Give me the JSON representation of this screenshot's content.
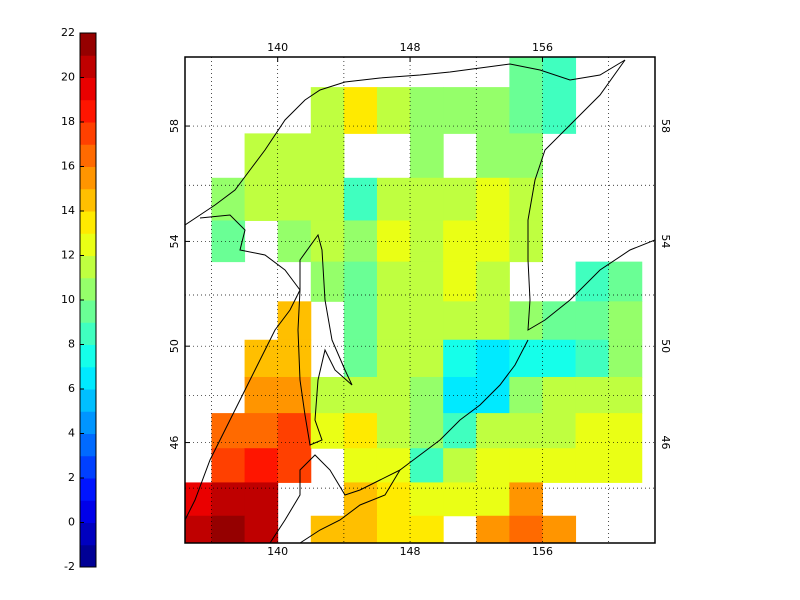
{
  "chart_data": {
    "type": "contourf",
    "colormap": "jet",
    "clim": [
      -2,
      22
    ],
    "contour_interval": 1,
    "colorbar_ticks": [
      -2,
      0,
      2,
      4,
      6,
      8,
      10,
      12,
      14,
      16,
      18,
      20,
      22
    ],
    "xlim": [
      134.4,
      162.8
    ],
    "ylim": [
      41.5,
      60.2
    ],
    "xticks": [
      140,
      148,
      156
    ],
    "yticks": [
      46,
      50,
      54,
      58
    ],
    "xgrid": [
      136,
      140,
      144,
      148,
      152,
      156,
      160
    ],
    "ygrid": [
      44,
      46,
      48,
      50,
      52,
      54,
      56,
      58
    ],
    "grid": true,
    "lon": [
      135,
      137,
      139,
      141,
      143,
      145,
      147,
      149,
      151,
      153,
      155,
      157,
      159,
      161
    ],
    "lat": [
      60,
      58.5,
      57,
      55.5,
      54,
      52.5,
      51,
      49.5,
      48,
      46.5,
      45,
      43.5,
      42
    ],
    "values": [
      [
        null,
        null,
        null,
        null,
        null,
        null,
        null,
        null,
        null,
        null,
        9,
        8,
        null,
        null
      ],
      [
        null,
        null,
        null,
        null,
        11,
        13,
        11,
        10,
        10,
        10,
        9,
        8,
        null,
        null
      ],
      [
        null,
        null,
        11,
        11,
        11,
        null,
        null,
        10,
        null,
        10,
        10,
        null,
        null,
        null
      ],
      [
        null,
        10,
        11,
        11,
        11,
        8,
        11,
        11,
        11,
        12,
        11,
        null,
        null,
        null
      ],
      [
        null,
        9,
        null,
        10,
        11,
        10,
        12,
        11,
        12,
        12,
        11,
        null,
        null,
        null
      ],
      [
        null,
        null,
        null,
        null,
        10,
        9,
        11,
        11,
        12,
        11,
        null,
        null,
        8,
        9
      ],
      [
        null,
        null,
        null,
        14,
        null,
        9,
        11,
        11,
        11,
        11,
        10,
        9,
        9,
        10
      ],
      [
        null,
        null,
        14,
        14,
        null,
        9,
        11,
        11,
        7,
        6,
        7,
        7,
        8,
        10
      ],
      [
        null,
        null,
        15,
        15,
        11,
        11,
        11,
        10,
        6,
        6,
        10,
        11,
        11,
        11
      ],
      [
        null,
        16,
        16,
        17,
        12,
        13,
        11,
        10,
        8,
        11,
        11,
        11,
        12,
        12
      ],
      [
        null,
        17,
        18,
        17,
        null,
        12,
        12,
        8,
        11,
        12,
        12,
        12,
        12,
        12
      ],
      [
        19,
        20,
        20,
        null,
        null,
        14,
        13,
        12,
        12,
        12,
        15,
        null,
        null,
        null
      ],
      [
        20,
        21,
        20,
        null,
        14,
        14,
        13,
        13,
        null,
        15,
        16,
        15,
        null,
        null
      ]
    ]
  }
}
